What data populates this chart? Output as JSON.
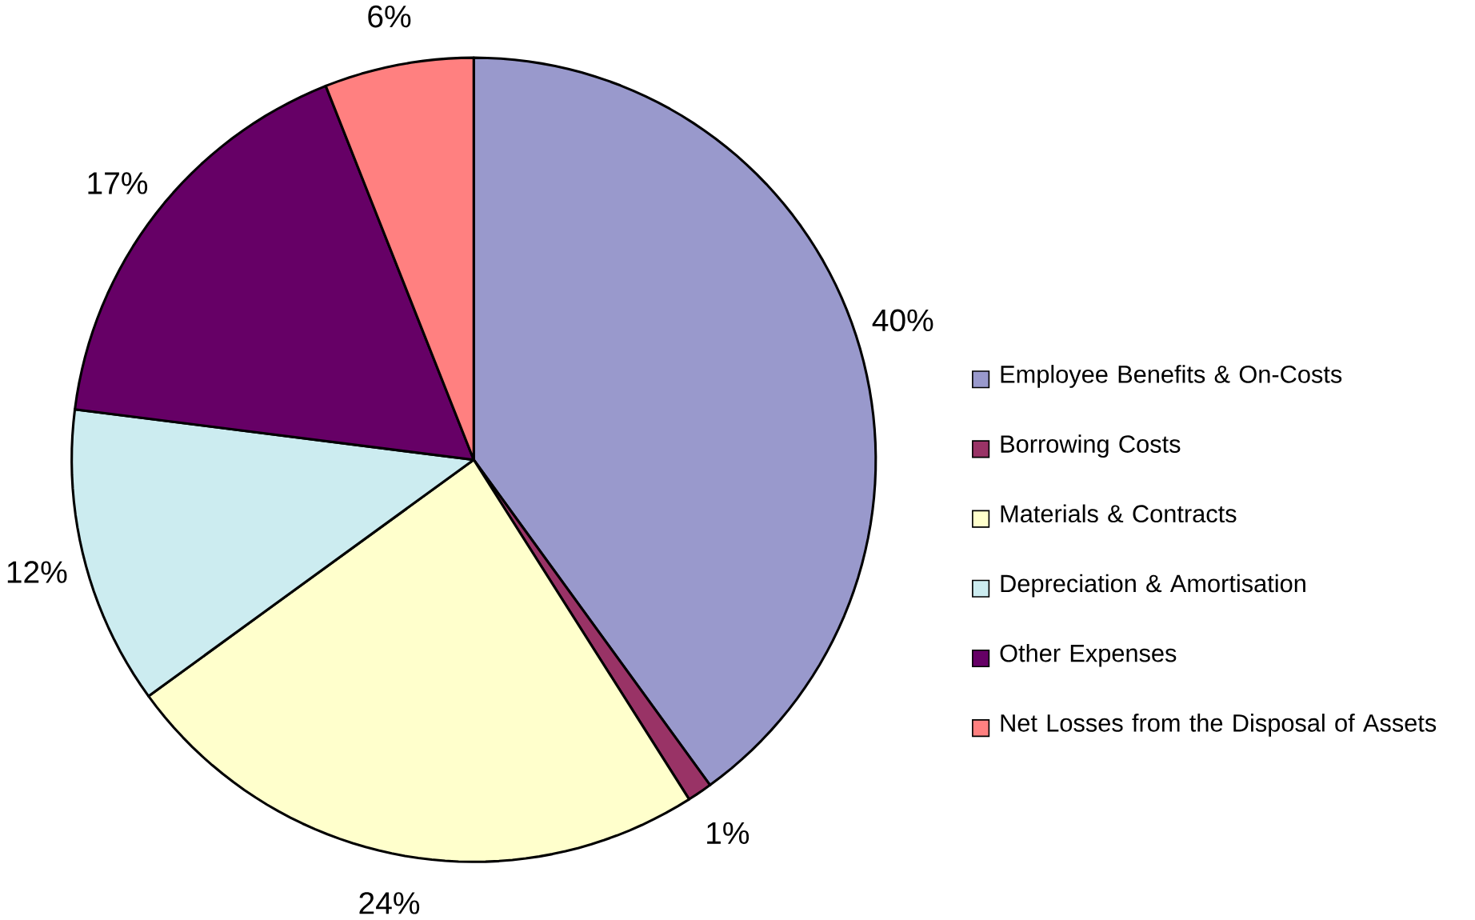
{
  "chart_data": {
    "type": "pie",
    "categories": [
      "Employee Benefits & On-Costs",
      "Borrowing Costs",
      "Materials & Contracts",
      "Depreciation & Amortisation",
      "Other Expenses",
      "Net Losses from the Disposal of Assets"
    ],
    "values": [
      40,
      1,
      24,
      12,
      17,
      6
    ],
    "value_labels": [
      "40%",
      "1%",
      "24%",
      "12%",
      "17%",
      "6%"
    ],
    "colors": [
      "#9999cc",
      "#993366",
      "#ffffcc",
      "#ccecf0",
      "#660066",
      "#ff8080"
    ],
    "legend": "right"
  }
}
